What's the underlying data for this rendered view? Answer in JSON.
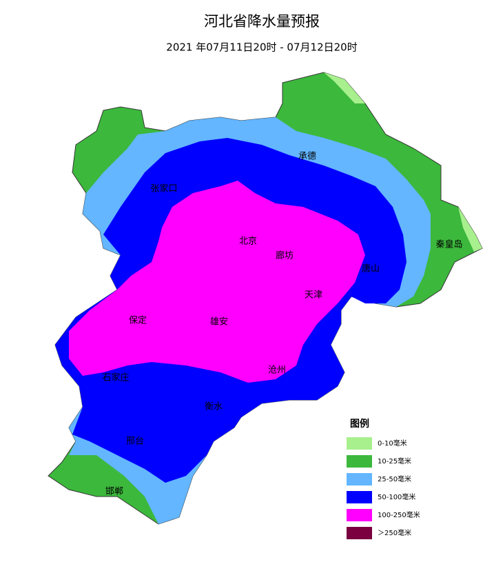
{
  "title": "河北省降水量预报",
  "subtitle": "2021 年07月11日20时 - 07月12日20时",
  "cities": [
    "承德",
    "张家口",
    "北京",
    "廊坊",
    "天津",
    "唐山",
    "秦皇岛",
    "保定",
    "雄安",
    "沧州",
    "石家庄",
    "衡水",
    "邢台",
    "邯郸"
  ],
  "legend": {
    "title": "图例",
    "items": [
      {
        "label": "0-10毫米",
        "color": "#a8f08e"
      },
      {
        "label": "10-25毫米",
        "color": "#3cb83c"
      },
      {
        "label": "25-50毫米",
        "color": "#63b6ff"
      },
      {
        "label": "50-100毫米",
        "color": "#0000ff"
      },
      {
        "label": "100-250毫米",
        "color": "#ff00ff"
      },
      {
        "label": "＞250毫米",
        "color": "#7a0040"
      }
    ]
  }
}
